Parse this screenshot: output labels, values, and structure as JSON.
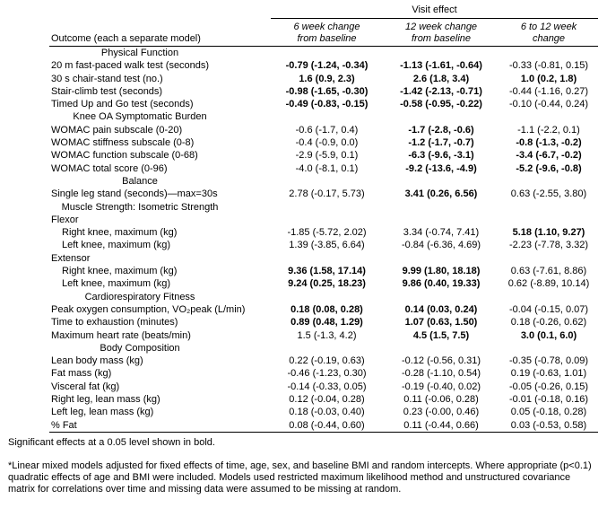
{
  "table": {
    "span_header": "Visit effect",
    "outcome_header": "Outcome (each a separate model)",
    "value_headers": [
      "6 week change from baseline",
      "12 week change from baseline",
      "6 to 12 week change"
    ],
    "rows": [
      {
        "type": "section",
        "label": "Physical Function"
      },
      {
        "type": "data",
        "label": "20 m fast-paced walk test (seconds)",
        "values": [
          "-0.79 (-1.24, -0.34)",
          "-1.13 (-1.61, -0.64)",
          "-0.33 (-0.81, 0.15)"
        ],
        "bold": [
          true,
          true,
          false
        ]
      },
      {
        "type": "data",
        "label": "30 s chair-stand test (no.)",
        "values": [
          "1.6 (0.9, 2.3)",
          "2.6 (1.8, 3.4)",
          "1.0 (0.2, 1.8)"
        ],
        "bold": [
          true,
          true,
          true
        ]
      },
      {
        "type": "data",
        "label": "Stair-climb test (seconds)",
        "values": [
          "-0.98 (-1.65, -0.30)",
          "-1.42 (-2.13, -0.71)",
          "-0.44 (-1.16, 0.27)"
        ],
        "bold": [
          true,
          true,
          false
        ]
      },
      {
        "type": "data",
        "label": "Timed Up and Go test (seconds)",
        "values": [
          "-0.49 (-0.83, -0.15)",
          "-0.58 (-0.95, -0.22)",
          "-0.10 (-0.44, 0.24)"
        ],
        "bold": [
          true,
          true,
          false
        ]
      },
      {
        "type": "section",
        "label": "Knee OA Symptomatic Burden"
      },
      {
        "type": "data",
        "label": "WOMAC pain subscale (0-20)",
        "values": [
          "-0.6 (-1.7, 0.4)",
          "-1.7 (-2.8, -0.6)",
          "-1.1 (-2.2, 0.1)"
        ],
        "bold": [
          false,
          true,
          false
        ]
      },
      {
        "type": "data",
        "label": "WOMAC stiffness subscale (0-8)",
        "values": [
          "-0.4 (-0.9, 0.0)",
          "-1.2 (-1.7, -0.7)",
          "-0.8 (-1.3, -0.2)"
        ],
        "bold": [
          false,
          true,
          true
        ]
      },
      {
        "type": "data",
        "label": "WOMAC function subscale (0-68)",
        "values": [
          "-2.9 (-5.9, 0.1)",
          "-6.3 (-9.6, -3.1)",
          "-3.4 (-6.7, -0.2)"
        ],
        "bold": [
          false,
          true,
          true
        ]
      },
      {
        "type": "data",
        "label": "WOMAC total score (0-96)",
        "values": [
          "-4.0 (-8.1, 0.1)",
          "-9.2 (-13.6, -4.9)",
          "-5.2 (-9.6, -0.8)"
        ],
        "bold": [
          false,
          true,
          true
        ]
      },
      {
        "type": "section",
        "label": "Balance"
      },
      {
        "type": "data",
        "label": "Single leg stand (seconds)—max=30s",
        "values": [
          "2.78 (-0.17, 5.73)",
          "3.41 (0.26, 6.56)",
          "0.63 (-2.55, 3.80)"
        ],
        "bold": [
          false,
          true,
          false
        ]
      },
      {
        "type": "section",
        "label": "Muscle Strength: Isometric Strength"
      },
      {
        "type": "group",
        "label": "Flexor"
      },
      {
        "type": "data",
        "indent": true,
        "label": "Right knee, maximum (kg)",
        "values": [
          "-1.85 (-5.72, 2.02)",
          "3.34 (-0.74, 7.41)",
          "5.18 (1.10, 9.27)"
        ],
        "bold": [
          false,
          false,
          true
        ]
      },
      {
        "type": "data",
        "indent": true,
        "label": "Left knee, maximum (kg)",
        "values": [
          "1.39 (-3.85, 6.64)",
          "-0.84 (-6.36, 4.69)",
          "-2.23 (-7.78, 3.32)"
        ],
        "bold": [
          false,
          false,
          false
        ]
      },
      {
        "type": "group",
        "label": "Extensor"
      },
      {
        "type": "data",
        "indent": true,
        "label": "Right knee, maximum (kg)",
        "values": [
          "9.36 (1.58, 17.14)",
          "9.99 (1.80, 18.18)",
          "0.63 (-7.61, 8.86)"
        ],
        "bold": [
          true,
          true,
          false
        ]
      },
      {
        "type": "data",
        "indent": true,
        "label": "Left knee, maximum (kg)",
        "values": [
          "9.24 (0.25, 18.23)",
          "9.86 (0.40, 19.33)",
          "0.62 (-8.89, 10.14)"
        ],
        "bold": [
          true,
          true,
          false
        ]
      },
      {
        "type": "section",
        "label": "Cardiorespiratory Fitness"
      },
      {
        "type": "data",
        "label": "Peak oxygen consumption, VO₂peak (L/min)",
        "values": [
          "0.18 (0.08, 0.28)",
          "0.14 (0.03, 0.24)",
          "-0.04 (-0.15, 0.07)"
        ],
        "bold": [
          true,
          true,
          false
        ]
      },
      {
        "type": "data",
        "label": "Time to exhaustion (minutes)",
        "values": [
          "0.89 (0.48, 1.29)",
          "1.07 (0.63, 1.50)",
          "0.18 (-0.26, 0.62)"
        ],
        "bold": [
          true,
          true,
          false
        ]
      },
      {
        "type": "data",
        "label": "Maximum heart rate (beats/min)",
        "values": [
          "1.5 (-1.3, 4.2)",
          "4.5 (1.5, 7.5)",
          "3.0 (0.1, 6.0)"
        ],
        "bold": [
          false,
          true,
          true
        ]
      },
      {
        "type": "section",
        "label": "Body Composition"
      },
      {
        "type": "data",
        "label": "Lean body mass (kg)",
        "values": [
          "0.22 (-0.19, 0.63)",
          "-0.12 (-0.56, 0.31)",
          "-0.35 (-0.78, 0.09)"
        ],
        "bold": [
          false,
          false,
          false
        ]
      },
      {
        "type": "data",
        "label": "Fat mass (kg)",
        "values": [
          "-0.46 (-1.23, 0.30)",
          "-0.28 (-1.10, 0.54)",
          "0.19 (-0.63, 1.01)"
        ],
        "bold": [
          false,
          false,
          false
        ]
      },
      {
        "type": "data",
        "label": "Visceral fat (kg)",
        "values": [
          "-0.14 (-0.33, 0.05)",
          "-0.19 (-0.40, 0.02)",
          "-0.05 (-0.26, 0.15)"
        ],
        "bold": [
          false,
          false,
          false
        ]
      },
      {
        "type": "data",
        "label": "Right leg, lean mass (kg)",
        "values": [
          "0.12 (-0.04, 0.28)",
          "0.11 (-0.06, 0.28)",
          "-0.01 (-0.18, 0.16)"
        ],
        "bold": [
          false,
          false,
          false
        ]
      },
      {
        "type": "data",
        "label": "Left leg, lean mass (kg)",
        "values": [
          "0.18 (-0.03, 0.40)",
          "0.23 (-0.00, 0.46)",
          "0.05 (-0.18, 0.28)"
        ],
        "bold": [
          false,
          false,
          false
        ]
      },
      {
        "type": "data",
        "label": "% Fat",
        "values": [
          "0.08 (-0.44, 0.60)",
          "0.11 (-0.44, 0.66)",
          "0.03 (-0.53, 0.58)"
        ],
        "bold": [
          false,
          false,
          false
        ]
      }
    ]
  },
  "footnotes": {
    "significance": "Significant effects at a 0.05 level shown in bold.",
    "model_note": "*Linear mixed models adjusted for fixed effects of time, age, sex, and baseline BMI and random intercepts.  Where appropriate (p<0.1) quadratic effects of age and BMI were included. Models used restricted maximum likelihood method and unstructured covariance matrix for correlations over time and missing data were assumed to be missing at random."
  }
}
